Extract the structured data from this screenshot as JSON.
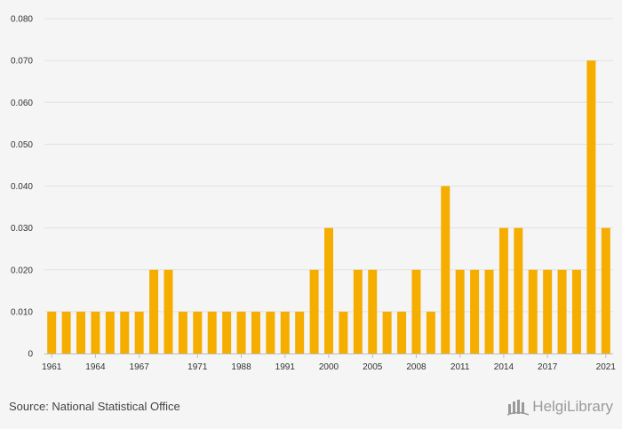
{
  "chart_data": {
    "type": "bar",
    "title": "",
    "xlabel": "",
    "ylabel": "",
    "ylim": [
      0,
      0.08
    ],
    "y_ticks": [
      "0",
      "0.010",
      "0.020",
      "0.030",
      "0.040",
      "0.050",
      "0.060",
      "0.070",
      "0.080"
    ],
    "categories": [
      "1961",
      "1962",
      "1963",
      "1964",
      "1965",
      "1966",
      "1967",
      "1968",
      "1969",
      "1970",
      "1971",
      "1972",
      "1973",
      "1988",
      "1989",
      "1990",
      "1991",
      "1992",
      "1999",
      "2000",
      "2003",
      "2004",
      "2005",
      "2006",
      "2007",
      "2008",
      "2009",
      "2010",
      "2011",
      "2012",
      "2013",
      "2014",
      "2015",
      "2016",
      "2017",
      "2018",
      "2019",
      "2020",
      "2021"
    ],
    "values": [
      0.01,
      0.01,
      0.01,
      0.01,
      0.01,
      0.01,
      0.01,
      0.02,
      0.02,
      0.01,
      0.01,
      0.01,
      0.01,
      0.01,
      0.01,
      0.01,
      0.01,
      0.01,
      0.02,
      0.03,
      0.01,
      0.02,
      0.02,
      0.01,
      0.01,
      0.02,
      0.01,
      0.04,
      0.02,
      0.02,
      0.02,
      0.03,
      0.03,
      0.02,
      0.02,
      0.02,
      0.02,
      0.07,
      0.03
    ],
    "x_tick_labels": [
      "1961",
      "1964",
      "1967",
      "1971",
      "1988",
      "1991",
      "2000",
      "2005",
      "2008",
      "2011",
      "2014",
      "2017",
      "2021"
    ],
    "bar_color": "#f5ae00",
    "grid": true
  },
  "footer": {
    "source": "Source: National Statistical Office",
    "logo_text": "HelgiLibrary"
  }
}
